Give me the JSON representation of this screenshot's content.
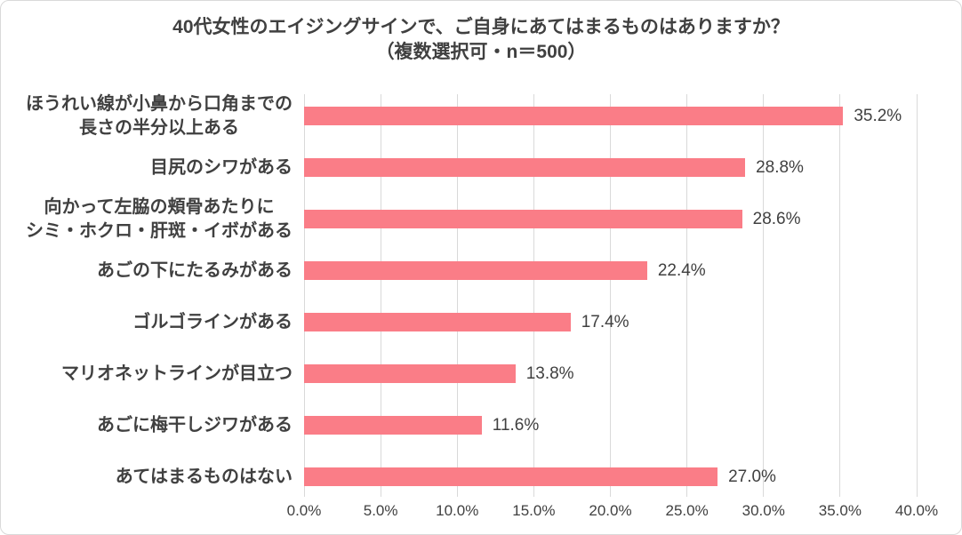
{
  "title": {
    "line1": "40代女性のエイジングサインで、ご自身にあてはまるものはありますか？",
    "line2": "（複数選択可・n＝500）"
  },
  "chart_data": {
    "type": "bar",
    "orientation": "horizontal",
    "title": "40代女性のエイジングサインで、ご自身にあてはまるものはありますか？",
    "subtitle": "（複数選択可・n＝500）",
    "categories": [
      "ほうれい線が小鼻から口角までの\n長さの半分以上ある",
      "目尻のシワがある",
      "向かって左脇の頬骨あたりに\nシミ・ホクロ・肝斑・イボがある",
      "あごの下にたるみがある",
      "ゴルゴラインがある",
      "マリオネットラインが目立つ",
      "あごに梅干しジワがある",
      "あてはまるものはない"
    ],
    "values": [
      35.2,
      28.8,
      28.6,
      22.4,
      17.4,
      13.8,
      11.6,
      27.0
    ],
    "value_labels": [
      "35.2%",
      "28.8%",
      "28.6%",
      "22.4%",
      "17.4%",
      "13.8%",
      "11.6%",
      "27.0%"
    ],
    "xlim": [
      0,
      40
    ],
    "x_ticks": [
      "0.0%",
      "5.0%",
      "10.0%",
      "15.0%",
      "20.0%",
      "25.0%",
      "30.0%",
      "35.0%",
      "40.0%"
    ],
    "grid": "vertical",
    "legend": "none",
    "colors": {
      "bar": "#FA7D87",
      "gridline": "#D9D9D9",
      "text": "#404040",
      "border": "#D9D9D9",
      "background": "#FFFFFF"
    }
  }
}
